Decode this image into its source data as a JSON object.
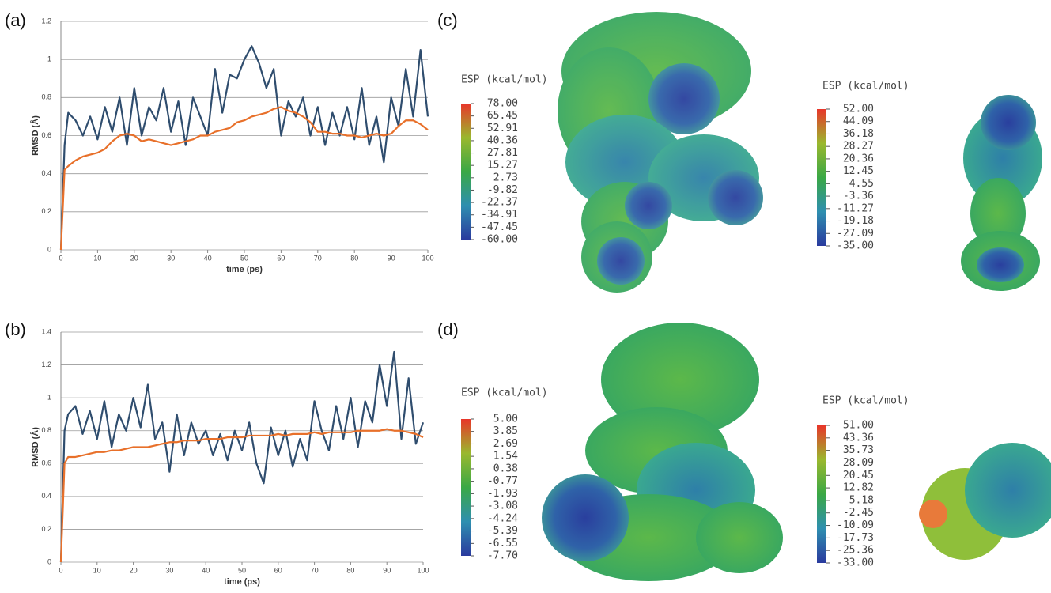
{
  "chart_data": [
    {
      "type": "line",
      "panel_label": "(a)",
      "y_label": "RMSD (Å)",
      "x_label": "time (ps)",
      "x": [
        0,
        1,
        2,
        4,
        6,
        8,
        10,
        12,
        14,
        16,
        18,
        20,
        22,
        24,
        26,
        28,
        30,
        32,
        34,
        36,
        38,
        40,
        42,
        44,
        46,
        48,
        50,
        52,
        54,
        56,
        58,
        60,
        62,
        64,
        66,
        68,
        70,
        72,
        74,
        76,
        78,
        80,
        82,
        84,
        86,
        88,
        90,
        92,
        94,
        96,
        98,
        100
      ],
      "xlim": [
        0,
        100
      ],
      "xticks": [
        0,
        10,
        20,
        30,
        40,
        50,
        60,
        70,
        80,
        90,
        100
      ],
      "ylim": [
        0,
        1.2
      ],
      "yticks": [
        0,
        0.2,
        0.4,
        0.6,
        0.8,
        1,
        1.2
      ],
      "grid": true,
      "series": [
        {
          "color": "#2f4d6e",
          "values": [
            0,
            0.55,
            0.72,
            0.68,
            0.6,
            0.7,
            0.58,
            0.75,
            0.62,
            0.8,
            0.55,
            0.85,
            0.6,
            0.75,
            0.68,
            0.85,
            0.62,
            0.78,
            0.55,
            0.8,
            0.7,
            0.6,
            0.95,
            0.72,
            0.92,
            0.9,
            1.0,
            1.07,
            0.98,
            0.85,
            0.95,
            0.6,
            0.78,
            0.7,
            0.8,
            0.6,
            0.75,
            0.55,
            0.72,
            0.6,
            0.75,
            0.58,
            0.85,
            0.55,
            0.7,
            0.46,
            0.8,
            0.65,
            0.95,
            0.7,
            1.05,
            0.7
          ]
        },
        {
          "color": "#e8702a",
          "values": [
            0,
            0.42,
            0.44,
            0.47,
            0.49,
            0.5,
            0.51,
            0.53,
            0.57,
            0.6,
            0.61,
            0.6,
            0.57,
            0.58,
            0.57,
            0.56,
            0.55,
            0.56,
            0.57,
            0.58,
            0.6,
            0.6,
            0.62,
            0.63,
            0.64,
            0.67,
            0.68,
            0.7,
            0.71,
            0.72,
            0.74,
            0.75,
            0.73,
            0.72,
            0.7,
            0.67,
            0.62,
            0.62,
            0.61,
            0.61,
            0.6,
            0.6,
            0.59,
            0.6,
            0.61,
            0.6,
            0.61,
            0.65,
            0.68,
            0.68,
            0.66,
            0.63
          ]
        }
      ]
    },
    {
      "type": "line",
      "panel_label": "(b)",
      "y_label": "RMSD (Å)",
      "x_label": "time (ps)",
      "x": [
        0,
        1,
        2,
        4,
        6,
        8,
        10,
        12,
        14,
        16,
        18,
        20,
        22,
        24,
        26,
        28,
        30,
        32,
        34,
        36,
        38,
        40,
        42,
        44,
        46,
        48,
        50,
        52,
        54,
        56,
        58,
        60,
        62,
        64,
        66,
        68,
        70,
        72,
        74,
        76,
        78,
        80,
        82,
        84,
        86,
        88,
        90,
        92,
        94,
        96,
        98,
        100
      ],
      "xlim": [
        0,
        100
      ],
      "xticks": [
        0,
        10,
        20,
        30,
        40,
        50,
        60,
        70,
        80,
        90,
        100
      ],
      "ylim": [
        0,
        1.4
      ],
      "yticks": [
        0,
        0.2,
        0.4,
        0.6,
        0.8,
        1,
        1.2,
        1.4
      ],
      "grid": true,
      "series": [
        {
          "color": "#2f4d6e",
          "values": [
            0,
            0.8,
            0.9,
            0.95,
            0.78,
            0.92,
            0.75,
            0.98,
            0.7,
            0.9,
            0.8,
            1.0,
            0.82,
            1.08,
            0.75,
            0.85,
            0.55,
            0.9,
            0.65,
            0.85,
            0.72,
            0.8,
            0.65,
            0.78,
            0.62,
            0.8,
            0.68,
            0.85,
            0.6,
            0.48,
            0.82,
            0.65,
            0.8,
            0.58,
            0.75,
            0.62,
            0.98,
            0.8,
            0.68,
            0.95,
            0.75,
            1.0,
            0.7,
            0.98,
            0.85,
            1.2,
            0.95,
            1.28,
            0.75,
            1.12,
            0.72,
            0.85
          ]
        },
        {
          "color": "#e8702a",
          "values": [
            0,
            0.6,
            0.64,
            0.64,
            0.65,
            0.66,
            0.67,
            0.67,
            0.68,
            0.68,
            0.69,
            0.7,
            0.7,
            0.7,
            0.71,
            0.72,
            0.73,
            0.73,
            0.74,
            0.74,
            0.74,
            0.75,
            0.75,
            0.75,
            0.76,
            0.76,
            0.76,
            0.77,
            0.77,
            0.77,
            0.77,
            0.78,
            0.77,
            0.78,
            0.78,
            0.78,
            0.79,
            0.78,
            0.79,
            0.79,
            0.79,
            0.79,
            0.8,
            0.8,
            0.8,
            0.8,
            0.81,
            0.8,
            0.8,
            0.79,
            0.78,
            0.76
          ]
        }
      ]
    },
    {
      "type": "colorbar",
      "panel_label": "(c)",
      "title": "ESP  (kcal/mol)",
      "clim": [
        -60,
        78
      ],
      "colormap": [
        "#2a3a9e",
        "#2e8fb0",
        "#3aa845",
        "#9ab82e",
        "#e8362a"
      ],
      "ticks": [
        {
          "value": 78,
          "label": "78.00"
        },
        {
          "value": 65.45,
          "label": "65.45"
        },
        {
          "value": 52.91,
          "label": "52.91"
        },
        {
          "value": 40.36,
          "label": "40.36"
        },
        {
          "value": 27.81,
          "label": "27.81"
        },
        {
          "value": 15.27,
          "label": "15.27"
        },
        {
          "value": 2.73,
          "label": "2.73"
        },
        {
          "value": -9.82,
          "label": "-9.82"
        },
        {
          "value": -22.37,
          "label": "-22.37"
        },
        {
          "value": -34.91,
          "label": "-34.91"
        },
        {
          "value": -47.45,
          "label": "-47.45"
        },
        {
          "value": -60,
          "label": "-60.00"
        }
      ]
    },
    {
      "type": "colorbar",
      "title": "ESP  (kcal/mol)",
      "clim": [
        -35,
        52
      ],
      "colormap": [
        "#2a3a9e",
        "#2e8fb0",
        "#3aa845",
        "#9ab82e",
        "#e8362a"
      ],
      "ticks": [
        {
          "value": 52,
          "label": "52.00"
        },
        {
          "value": 44.09,
          "label": "44.09"
        },
        {
          "value": 36.18,
          "label": "36.18"
        },
        {
          "value": 28.27,
          "label": "28.27"
        },
        {
          "value": 20.36,
          "label": "20.36"
        },
        {
          "value": 12.45,
          "label": "12.45"
        },
        {
          "value": 4.55,
          "label": "4.55"
        },
        {
          "value": -3.36,
          "label": "-3.36"
        },
        {
          "value": -11.27,
          "label": "-11.27"
        },
        {
          "value": -19.18,
          "label": "-19.18"
        },
        {
          "value": -27.09,
          "label": "-27.09"
        },
        {
          "value": -35,
          "label": "-35.00"
        }
      ]
    },
    {
      "type": "colorbar",
      "panel_label": "(d)",
      "title": "ESP  (kcal/mol)",
      "clim": [
        -7.7,
        5
      ],
      "colormap": [
        "#2a3a9e",
        "#2e8fb0",
        "#3aa845",
        "#9ab82e",
        "#e8362a"
      ],
      "ticks": [
        {
          "value": 5,
          "label": "5.00"
        },
        {
          "value": 3.85,
          "label": "3.85"
        },
        {
          "value": 2.69,
          "label": "2.69"
        },
        {
          "value": 1.54,
          "label": "1.54"
        },
        {
          "value": 0.38,
          "label": "0.38"
        },
        {
          "value": -0.77,
          "label": "-0.77"
        },
        {
          "value": -1.93,
          "label": "-1.93"
        },
        {
          "value": -3.08,
          "label": "-3.08"
        },
        {
          "value": -4.24,
          "label": "-4.24"
        },
        {
          "value": -5.39,
          "label": "-5.39"
        },
        {
          "value": -6.55,
          "label": "-6.55"
        },
        {
          "value": -7.7,
          "label": "-7.70"
        }
      ]
    },
    {
      "type": "colorbar",
      "title": "ESP  (kcal/mol)",
      "clim": [
        -33,
        51
      ],
      "colormap": [
        "#2a3a9e",
        "#2e8fb0",
        "#3aa845",
        "#9ab82e",
        "#e8362a"
      ],
      "ticks": [
        {
          "value": 51,
          "label": "51.00"
        },
        {
          "value": 43.36,
          "label": "43.36"
        },
        {
          "value": 35.73,
          "label": "35.73"
        },
        {
          "value": 28.09,
          "label": "28.09"
        },
        {
          "value": 20.45,
          "label": "20.45"
        },
        {
          "value": 12.82,
          "label": "12.82"
        },
        {
          "value": 5.18,
          "label": "5.18"
        },
        {
          "value": -2.45,
          "label": "-2.45"
        },
        {
          "value": -10.09,
          "label": "-10.09"
        },
        {
          "value": -17.73,
          "label": "-17.73"
        },
        {
          "value": -25.36,
          "label": "-25.36"
        },
        {
          "value": -33,
          "label": "-33.00"
        }
      ]
    }
  ]
}
